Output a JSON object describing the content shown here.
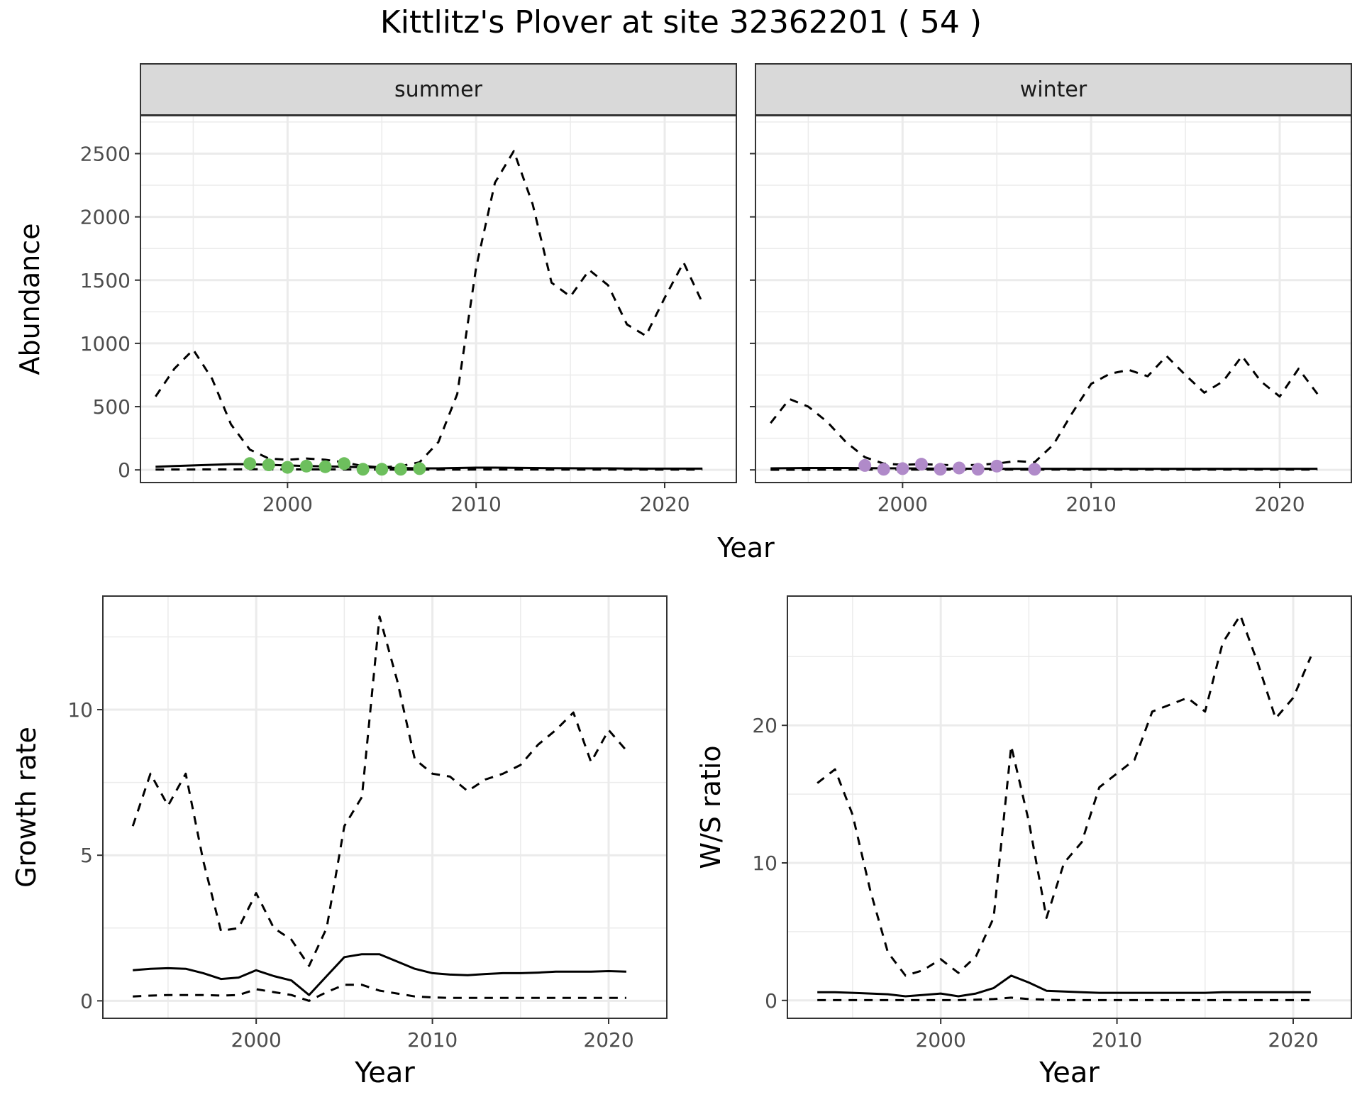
{
  "title": "Kittlitz's Plover at site 32362201 ( 54 )",
  "colors": {
    "summer_points": "#6DBF5D",
    "winter_points": "#B08AC9",
    "strip_fill": "#D9D9D9",
    "grid": "#EBEBEB",
    "line": "#000000"
  },
  "chart_data": [
    {
      "id": "abundance",
      "type": "line",
      "facets": [
        "summer",
        "winter"
      ],
      "xlabel": "Year",
      "ylabel": "Abundance",
      "xlim": [
        1992.2,
        2023.8
      ],
      "ylim": [
        -100,
        2800
      ],
      "xticks": [
        2000,
        2010,
        2020
      ],
      "yticks": [
        0,
        500,
        1000,
        1500,
        2000,
        2500
      ],
      "grid": true,
      "panels": [
        {
          "facet": "summer",
          "series": [
            {
              "style": "solid",
              "x": [
                1993,
                1994,
                1995,
                1996,
                1997,
                1998,
                1999,
                2000,
                2001,
                2002,
                2003,
                2004,
                2005,
                2006,
                2007,
                2008,
                2009,
                2010,
                2011,
                2012,
                2013,
                2014,
                2015,
                2016,
                2017,
                2018,
                2019,
                2020,
                2021,
                2022
              ],
              "y": [
                25,
                30,
                35,
                40,
                45,
                45,
                40,
                35,
                30,
                28,
                25,
                20,
                18,
                15,
                12,
                12,
                15,
                18,
                18,
                16,
                15,
                14,
                13,
                12,
                12,
                11,
                10,
                10,
                10,
                10
              ]
            },
            {
              "style": "dashed",
              "x": [
                1993,
                1994,
                1995,
                1996,
                1997,
                1998,
                1999,
                2000,
                2001,
                2002,
                2003,
                2004,
                2005,
                2006,
                2007,
                2008,
                2009,
                2010,
                2011,
                2012,
                2013,
                2014,
                2015,
                2016,
                2017,
                2018,
                2019,
                2020,
                2021,
                2022
              ],
              "y": [
                580,
                800,
                950,
                720,
                360,
                160,
                90,
                80,
                90,
                80,
                60,
                30,
                20,
                30,
                60,
                220,
                600,
                1600,
                2270,
                2520,
                2100,
                1480,
                1370,
                1580,
                1460,
                1150,
                1060,
                1360,
                1640,
                1320
              ]
            },
            {
              "style": "dashed",
              "x": [
                1993,
                1994,
                1995,
                1996,
                1997,
                1998,
                1999,
                2000,
                2001,
                2002,
                2003,
                2004,
                2005,
                2006,
                2007,
                2008,
                2009,
                2010,
                2011,
                2012,
                2013,
                2014,
                2015,
                2016,
                2017,
                2018,
                2019,
                2020,
                2021,
                2022
              ],
              "y": [
                2,
                3,
                3,
                4,
                4,
                5,
                5,
                4,
                4,
                4,
                3,
                3,
                2,
                2,
                2,
                2,
                2,
                3,
                3,
                3,
                3,
                2,
                2,
                2,
                2,
                2,
                2,
                2,
                2,
                2
              ]
            }
          ],
          "points": {
            "x": [
              1998,
              1999,
              2000,
              2001,
              2002,
              2003,
              2004,
              2005,
              2006,
              2007
            ],
            "y": [
              50,
              40,
              20,
              30,
              25,
              50,
              5,
              5,
              5,
              10
            ]
          }
        },
        {
          "facet": "winter",
          "series": [
            {
              "style": "solid",
              "x": [
                1993,
                1994,
                1995,
                1996,
                1997,
                1998,
                1999,
                2000,
                2001,
                2002,
                2003,
                2004,
                2005,
                2006,
                2007,
                2008,
                2009,
                2010,
                2011,
                2012,
                2013,
                2014,
                2015,
                2016,
                2017,
                2018,
                2019,
                2020,
                2021,
                2022
              ],
              "y": [
                12,
                14,
                15,
                15,
                15,
                14,
                13,
                12,
                11,
                10,
                10,
                9,
                9,
                9,
                9,
                9,
                9,
                9,
                9,
                9,
                9,
                9,
                9,
                9,
                9,
                9,
                9,
                9,
                9,
                9
              ]
            },
            {
              "style": "dashed",
              "x": [
                1993,
                1994,
                1995,
                1996,
                1997,
                1998,
                1999,
                2000,
                2001,
                2002,
                2003,
                2004,
                2005,
                2006,
                2007,
                2008,
                2009,
                2010,
                2011,
                2012,
                2013,
                2014,
                2015,
                2016,
                2017,
                2018,
                2019,
                2020,
                2021,
                2022
              ],
              "y": [
                370,
                560,
                500,
                380,
                220,
                100,
                50,
                40,
                45,
                40,
                35,
                40,
                50,
                70,
                60,
                200,
                450,
                680,
                760,
                790,
                740,
                900,
                750,
                610,
                700,
                900,
                700,
                580,
                800,
                600
              ]
            },
            {
              "style": "dashed",
              "x": [
                1993,
                1994,
                1995,
                1996,
                1997,
                1998,
                1999,
                2000,
                2001,
                2002,
                2003,
                2004,
                2005,
                2006,
                2007,
                2008,
                2009,
                2010,
                2011,
                2012,
                2013,
                2014,
                2015,
                2016,
                2017,
                2018,
                2019,
                2020,
                2021,
                2022
              ],
              "y": [
                1,
                1,
                1,
                2,
                2,
                2,
                2,
                2,
                2,
                2,
                2,
                2,
                2,
                2,
                2,
                2,
                2,
                2,
                2,
                2,
                2,
                2,
                2,
                2,
                2,
                2,
                2,
                2,
                2,
                2
              ]
            }
          ],
          "points": {
            "x": [
              1998,
              1999,
              2000,
              2001,
              2002,
              2003,
              2004,
              2005,
              2007
            ],
            "y": [
              35,
              5,
              10,
              45,
              5,
              15,
              5,
              30,
              5
            ]
          }
        }
      ]
    },
    {
      "id": "growth",
      "type": "line",
      "xlabel": "Year",
      "ylabel": "Growth rate",
      "xlim": [
        1991.3,
        2023.3
      ],
      "ylim": [
        -0.6,
        13.9
      ],
      "xticks": [
        2000,
        2010,
        2020
      ],
      "yticks": [
        0,
        5,
        10
      ],
      "grid": true,
      "series": [
        {
          "style": "solid",
          "x": [
            1993,
            1994,
            1995,
            1996,
            1997,
            1998,
            1999,
            2000,
            2001,
            2002,
            2003,
            2004,
            2005,
            2006,
            2007,
            2008,
            2009,
            2010,
            2011,
            2012,
            2013,
            2014,
            2015,
            2016,
            2017,
            2018,
            2019,
            2020,
            2021
          ],
          "y": [
            1.05,
            1.1,
            1.12,
            1.1,
            0.95,
            0.75,
            0.8,
            1.05,
            0.85,
            0.7,
            0.2,
            0.85,
            1.5,
            1.6,
            1.6,
            1.35,
            1.1,
            0.95,
            0.9,
            0.88,
            0.92,
            0.95,
            0.95,
            0.97,
            1.0,
            1.0,
            1.0,
            1.02,
            1.0
          ]
        },
        {
          "style": "dashed",
          "x": [
            1993,
            1994,
            1995,
            1996,
            1997,
            1998,
            1999,
            2000,
            2001,
            2002,
            2003,
            2004,
            2005,
            2006,
            2007,
            2008,
            2009,
            2010,
            2011,
            2012,
            2013,
            2014,
            2015,
            2016,
            2017,
            2018,
            2019,
            2020,
            2021
          ],
          "y": [
            6.0,
            7.8,
            6.7,
            7.8,
            4.8,
            2.4,
            2.5,
            3.7,
            2.5,
            2.1,
            1.2,
            2.5,
            6.0,
            7.0,
            13.2,
            11.0,
            8.3,
            7.8,
            7.7,
            7.2,
            7.6,
            7.8,
            8.1,
            8.8,
            9.3,
            9.9,
            8.2,
            9.3,
            8.6
          ]
        },
        {
          "style": "dashed",
          "x": [
            1993,
            1994,
            1995,
            1996,
            1997,
            1998,
            1999,
            2000,
            2001,
            2002,
            2003,
            2004,
            2005,
            2006,
            2007,
            2008,
            2009,
            2010,
            2011,
            2012,
            2013,
            2014,
            2015,
            2016,
            2017,
            2018,
            2019,
            2020,
            2021
          ],
          "y": [
            0.15,
            0.18,
            0.2,
            0.2,
            0.2,
            0.18,
            0.2,
            0.4,
            0.3,
            0.2,
            0.0,
            0.3,
            0.55,
            0.55,
            0.35,
            0.25,
            0.15,
            0.12,
            0.1,
            0.1,
            0.1,
            0.1,
            0.1,
            0.1,
            0.1,
            0.1,
            0.1,
            0.1,
            0.1
          ]
        }
      ]
    },
    {
      "id": "ws_ratio",
      "type": "line",
      "xlabel": "Year",
      "ylabel": "W/S ratio",
      "xlim": [
        1991.3,
        2023.3
      ],
      "ylim": [
        -1.3,
        29.4
      ],
      "xticks": [
        2000,
        2010,
        2020
      ],
      "yticks": [
        0,
        10,
        20
      ],
      "grid": true,
      "series": [
        {
          "style": "solid",
          "x": [
            1993,
            1994,
            1995,
            1996,
            1997,
            1998,
            1999,
            2000,
            2001,
            2002,
            2003,
            2004,
            2005,
            2006,
            2007,
            2008,
            2009,
            2010,
            2011,
            2012,
            2013,
            2014,
            2015,
            2016,
            2017,
            2018,
            2019,
            2020,
            2021
          ],
          "y": [
            0.6,
            0.6,
            0.55,
            0.5,
            0.45,
            0.3,
            0.4,
            0.5,
            0.3,
            0.5,
            0.9,
            1.8,
            1.3,
            0.7,
            0.65,
            0.6,
            0.55,
            0.55,
            0.55,
            0.55,
            0.55,
            0.55,
            0.55,
            0.6,
            0.6,
            0.6,
            0.6,
            0.6,
            0.6
          ]
        },
        {
          "style": "dashed",
          "x": [
            1993,
            1994,
            1995,
            1996,
            1997,
            1998,
            1999,
            2000,
            2001,
            2002,
            2003,
            2004,
            2005,
            2006,
            2007,
            2008,
            2009,
            2010,
            2011,
            2012,
            2013,
            2014,
            2015,
            2016,
            2017,
            2018,
            2019,
            2020,
            2021
          ],
          "y": [
            15.8,
            16.8,
            13.5,
            8.0,
            3.5,
            1.8,
            2.2,
            3.0,
            2.0,
            3.2,
            6.0,
            18.5,
            13.0,
            6.0,
            10.0,
            11.5,
            15.5,
            16.5,
            17.5,
            21.0,
            21.5,
            22.0,
            21.0,
            26.0,
            28.0,
            24.5,
            20.5,
            22.0,
            25.0
          ]
        },
        {
          "style": "dashed",
          "x": [
            1993,
            1994,
            1995,
            1996,
            1997,
            1998,
            1999,
            2000,
            2001,
            2002,
            2003,
            2004,
            2005,
            2006,
            2007,
            2008,
            2009,
            2010,
            2011,
            2012,
            2013,
            2014,
            2015,
            2016,
            2017,
            2018,
            2019,
            2020,
            2021
          ],
          "y": [
            0.02,
            0.02,
            0.02,
            0.02,
            0.02,
            0.02,
            0.02,
            0.02,
            0.02,
            0.05,
            0.1,
            0.2,
            0.1,
            0.05,
            0.02,
            0.02,
            0.02,
            0.02,
            0.02,
            0.02,
            0.02,
            0.02,
            0.02,
            0.02,
            0.02,
            0.02,
            0.02,
            0.02,
            0.02
          ]
        }
      ]
    }
  ]
}
